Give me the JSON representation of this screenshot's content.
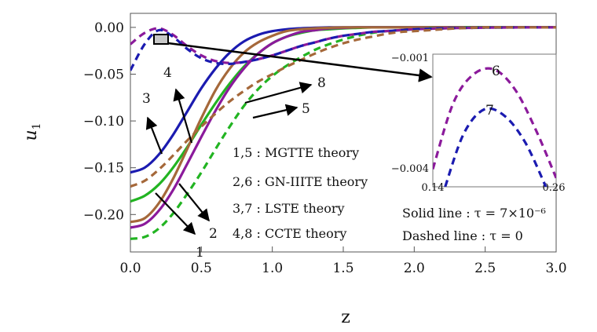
{
  "chart_data": {
    "type": "line",
    "xlabel": "z",
    "ylabel": "u",
    "ylabel_sub": "1",
    "xlim": [
      0.0,
      3.0
    ],
    "ylim": [
      -0.24,
      0.015
    ],
    "x_ticks": [
      "0.0",
      "0.5",
      "1.0",
      "1.5",
      "2.0",
      "2.5",
      "3.0"
    ],
    "y_ticks": [
      "0.00",
      "−0.05",
      "−0.10",
      "−0.15",
      "−0.20"
    ],
    "x": [
      0.0,
      0.1,
      0.2,
      0.3,
      0.4,
      0.5,
      0.6,
      0.7,
      0.8,
      0.9,
      1.0,
      1.1,
      1.2,
      1.3,
      1.4,
      1.5,
      1.6,
      1.7,
      1.8,
      1.9,
      2.0,
      2.1,
      2.2,
      2.3,
      2.4,
      2.5,
      2.6,
      2.7,
      2.8,
      2.9,
      3.0
    ],
    "series": [
      {
        "label": "1",
        "color": "#22b422",
        "dash": false,
        "y": [
          -0.186,
          -0.18,
          -0.168,
          -0.15,
          -0.128,
          -0.104,
          -0.081,
          -0.06,
          -0.042,
          -0.028,
          -0.017,
          -0.01,
          -0.006,
          -0.003,
          -0.002,
          -0.001,
          -0.0005,
          0,
          0,
          0,
          0,
          0,
          0,
          0,
          0,
          0,
          0,
          0,
          0,
          0,
          0
        ]
      },
      {
        "label": "2",
        "color": "#8b1a9b",
        "dash": false,
        "y": [
          -0.214,
          -0.21,
          -0.196,
          -0.174,
          -0.146,
          -0.117,
          -0.089,
          -0.064,
          -0.044,
          -0.028,
          -0.017,
          -0.01,
          -0.005,
          -0.003,
          -0.001,
          -0.0005,
          0,
          0,
          0,
          0,
          0,
          0,
          0,
          0,
          0,
          0,
          0,
          0,
          0,
          0,
          0
        ]
      },
      {
        "label": "3",
        "color": "#1b1bb0",
        "dash": false,
        "y": [
          -0.155,
          -0.15,
          -0.136,
          -0.115,
          -0.09,
          -0.065,
          -0.044,
          -0.027,
          -0.015,
          -0.008,
          -0.004,
          -0.002,
          -0.001,
          -0.0004,
          0,
          0,
          0,
          0,
          0,
          0,
          0,
          0,
          0,
          0,
          0,
          0,
          0,
          0,
          0,
          0,
          0
        ]
      },
      {
        "label": "4",
        "color": "#a5683a",
        "dash": false,
        "y": [
          -0.208,
          -0.204,
          -0.188,
          -0.162,
          -0.13,
          -0.097,
          -0.067,
          -0.044,
          -0.027,
          -0.016,
          -0.009,
          -0.004,
          -0.002,
          -0.001,
          -0.0004,
          0,
          0,
          0,
          0,
          0,
          0,
          0,
          0,
          0,
          0,
          0,
          0,
          0,
          0,
          0,
          0
        ]
      },
      {
        "label": "5",
        "color": "#22b422",
        "dash": true,
        "y": [
          -0.226,
          -0.224,
          -0.215,
          -0.199,
          -0.178,
          -0.155,
          -0.13,
          -0.106,
          -0.084,
          -0.066,
          -0.052,
          -0.041,
          -0.032,
          -0.024,
          -0.018,
          -0.013,
          -0.009,
          -0.006,
          -0.004,
          -0.003,
          -0.002,
          -0.001,
          -0.001,
          -0.0005,
          0,
          0,
          0,
          0,
          0,
          0,
          0
        ]
      },
      {
        "label": "6",
        "color": "#8b1a9b",
        "dash": true,
        "y": [
          -0.018,
          -0.006,
          -0.001,
          -0.008,
          -0.02,
          -0.03,
          -0.036,
          -0.038,
          -0.037,
          -0.034,
          -0.03,
          -0.025,
          -0.02,
          -0.016,
          -0.012,
          -0.009,
          -0.007,
          -0.005,
          -0.004,
          -0.003,
          -0.002,
          -0.0015,
          -0.001,
          -0.0007,
          -0.0005,
          -0.0003,
          -0.0002,
          -0.0001,
          0,
          0,
          0
        ]
      },
      {
        "label": "7",
        "color": "#1b1bb0",
        "dash": true,
        "y": [
          -0.046,
          -0.018,
          -0.003,
          -0.01,
          -0.023,
          -0.033,
          -0.038,
          -0.039,
          -0.037,
          -0.034,
          -0.03,
          -0.025,
          -0.02,
          -0.016,
          -0.012,
          -0.009,
          -0.007,
          -0.005,
          -0.004,
          -0.003,
          -0.002,
          -0.0015,
          -0.001,
          -0.0007,
          -0.0005,
          -0.0003,
          -0.0002,
          -0.0001,
          0,
          0,
          0
        ]
      },
      {
        "label": "8",
        "color": "#a5683a",
        "dash": true,
        "y": [
          -0.17,
          -0.164,
          -0.152,
          -0.137,
          -0.121,
          -0.106,
          -0.092,
          -0.079,
          -0.068,
          -0.058,
          -0.05,
          -0.042,
          -0.035,
          -0.028,
          -0.022,
          -0.017,
          -0.013,
          -0.01,
          -0.007,
          -0.005,
          -0.004,
          -0.003,
          -0.002,
          -0.001,
          -0.0005,
          0,
          0,
          0,
          0,
          0,
          0
        ]
      }
    ],
    "curve_labels": [
      "1",
      "2",
      "3",
      "4",
      "5",
      "6",
      "7",
      "8"
    ],
    "legend": [
      "1,5 : MGTTE theory",
      "2,6 : GN-IIITE theory",
      "3,7 : LSTE theory",
      "4,8 : CCTE theory"
    ],
    "notes": [
      "Solid line : τ = 7×10⁻⁶",
      "Dashed line : τ = 0"
    ],
    "inset": {
      "xlim": [
        0.14,
        0.26
      ],
      "ylim": [
        -0.004,
        -0.001
      ],
      "x_ticks": [
        "0.14",
        "0.26"
      ],
      "y_ticks": [
        "−0.001",
        "−0.004"
      ],
      "series": [
        {
          "label": "6",
          "color": "#8b1a9b",
          "x": [
            0.14,
            0.16,
            0.18,
            0.2,
            0.22,
            0.24,
            0.26
          ],
          "y": [
            -0.0036,
            -0.0021,
            -0.00145,
            -0.00135,
            -0.0018,
            -0.0027,
            -0.0038
          ]
        },
        {
          "label": "7",
          "color": "#1b1bb0",
          "x": [
            0.152,
            0.17,
            0.19,
            0.21,
            0.23,
            0.25
          ],
          "y": [
            -0.004,
            -0.0028,
            -0.00225,
            -0.0024,
            -0.003,
            -0.004
          ]
        }
      ]
    }
  }
}
